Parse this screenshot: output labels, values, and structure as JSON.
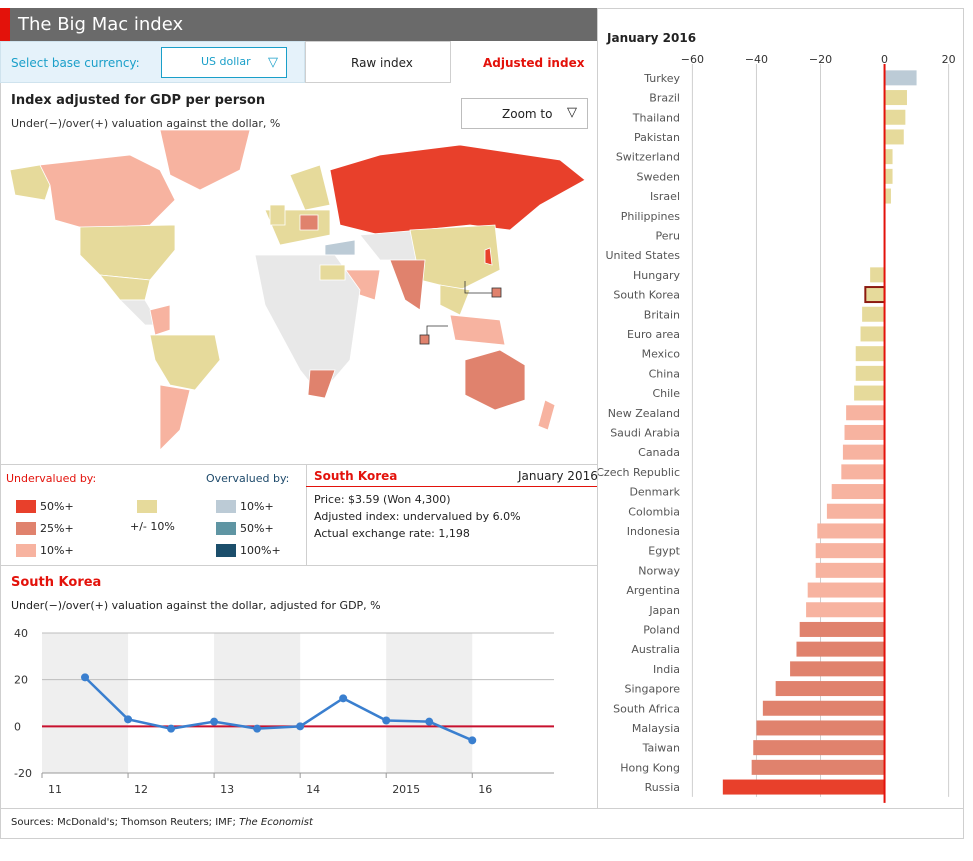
{
  "app": {
    "title": "The Big Mac index"
  },
  "controls": {
    "base_currency_label": "Select base currency:",
    "base_currency_value": "US dollar",
    "tabs": [
      {
        "label": "Raw index",
        "active": false
      },
      {
        "label": "Adjusted index",
        "active": true
      }
    ],
    "zoom_label": "Zoom to"
  },
  "map": {
    "title": "Index adjusted for GDP per person",
    "subtitle": "Under(−)/over(+) valuation against the dollar, %"
  },
  "legend": {
    "undervalued_title": "Undervalued by:",
    "overvalued_title": "Overvalued by:",
    "under": [
      {
        "label": "50%+",
        "color": "#e8402b"
      },
      {
        "label": "25%+",
        "color": "#e0826d"
      },
      {
        "label": "10%+",
        "color": "#f7b3a0"
      }
    ],
    "neutral": {
      "label": "+/- 10%",
      "color": "#e6da9b"
    },
    "over": [
      {
        "label": "10%+",
        "color": "#bccbd6"
      },
      {
        "label": "50%+",
        "color": "#5f95a3"
      },
      {
        "label": "100%+",
        "color": "#1b4e6b"
      }
    ]
  },
  "info": {
    "country": "South Korea",
    "date": "January 2016",
    "price": "Price: $3.59 (Won 4,300)",
    "adjusted": "Adjusted index: undervalued by 6.0%",
    "exchange": "Actual exchange rate: 1,198"
  },
  "line_chart": {
    "title": "South Korea",
    "subtitle": "Under(−)/over(+) valuation against the dollar, adjusted for GDP, %"
  },
  "bar_chart": {
    "date": "January 2016"
  },
  "chart_data": [
    {
      "type": "line",
      "title": "South Korea",
      "subtitle": "Under(−)/over(+) valuation against the dollar, adjusted for GDP, %",
      "x": [
        2011.5,
        2012.0,
        2012.5,
        2013.0,
        2013.5,
        2014.0,
        2014.5,
        2015.0,
        2015.5,
        2016.0
      ],
      "series": [
        {
          "values": [
            21,
            3,
            -1,
            2,
            -1,
            0,
            12,
            2.5,
            2,
            -6
          ]
        }
      ],
      "xtick_labels": [
        "11",
        "12",
        "13",
        "14",
        "2015",
        "16"
      ],
      "xticks": [
        2011,
        2012,
        2013,
        2014,
        2015,
        2016
      ],
      "xlim": [
        2011,
        2016.95
      ],
      "ylim": [
        -20,
        40
      ],
      "yticks": [
        -20,
        0,
        20,
        40
      ],
      "grid": true,
      "shaded_years": [
        2011,
        2013,
        2015
      ],
      "line_color": "#3a7fcf",
      "zero_line_color": "#c8102e"
    },
    {
      "type": "bar",
      "orientation": "horizontal",
      "title": "January 2016",
      "categories": [
        "Turkey",
        "Brazil",
        "Thailand",
        "Pakistan",
        "Switzerland",
        "Sweden",
        "Israel",
        "Philippines",
        "Peru",
        "United States",
        "Hungary",
        "South Korea",
        "Britain",
        "Euro area",
        "Mexico",
        "China",
        "Chile",
        "New Zealand",
        "Saudi Arabia",
        "Canada",
        "Czech Republic",
        "Denmark",
        "Colombia",
        "Indonesia",
        "Egypt",
        "Norway",
        "Argentina",
        "Japan",
        "Poland",
        "Australia",
        "India",
        "Singapore",
        "South Africa",
        "Malaysia",
        "Taiwan",
        "Hong Kong",
        "Russia"
      ],
      "values": [
        10,
        7,
        6.5,
        6,
        2.5,
        2.5,
        2,
        0,
        0,
        0,
        -4.5,
        -6,
        -7,
        -7.5,
        -9,
        -9,
        -9.5,
        -12,
        -12.5,
        -13,
        -13.5,
        -16.5,
        -18,
        -21,
        -21.5,
        -21.5,
        -24,
        -24.5,
        -26.5,
        -27.5,
        -29.5,
        -34,
        -38,
        -40,
        -41,
        -41.5,
        -50.5
      ],
      "xlim": [
        -62,
        22
      ],
      "xticks": [
        -60,
        -40,
        -20,
        0,
        20
      ],
      "highlight": "South Korea",
      "grid": true
    }
  ],
  "footer": {
    "source_prefix": "Sources: McDonald's; Thomson Reuters; IMF; ",
    "source_italic": "The Economist"
  }
}
